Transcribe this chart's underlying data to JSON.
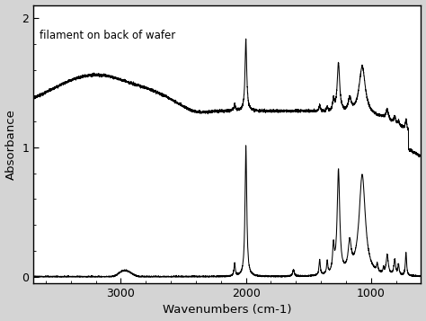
{
  "title": "",
  "xlabel": "Wavenumbers (cm-1)",
  "ylabel": "Absorbance",
  "annotation": "filament on back of wafer",
  "xlim": [
    3700,
    600
  ],
  "ylim": [
    -0.05,
    2.1
  ],
  "yticks": [
    0,
    1,
    2
  ],
  "xticks": [
    3000,
    2000,
    1000
  ],
  "background_color": "#ffffff",
  "line_color": "#000000",
  "fig_bg": "#d4d4d4"
}
